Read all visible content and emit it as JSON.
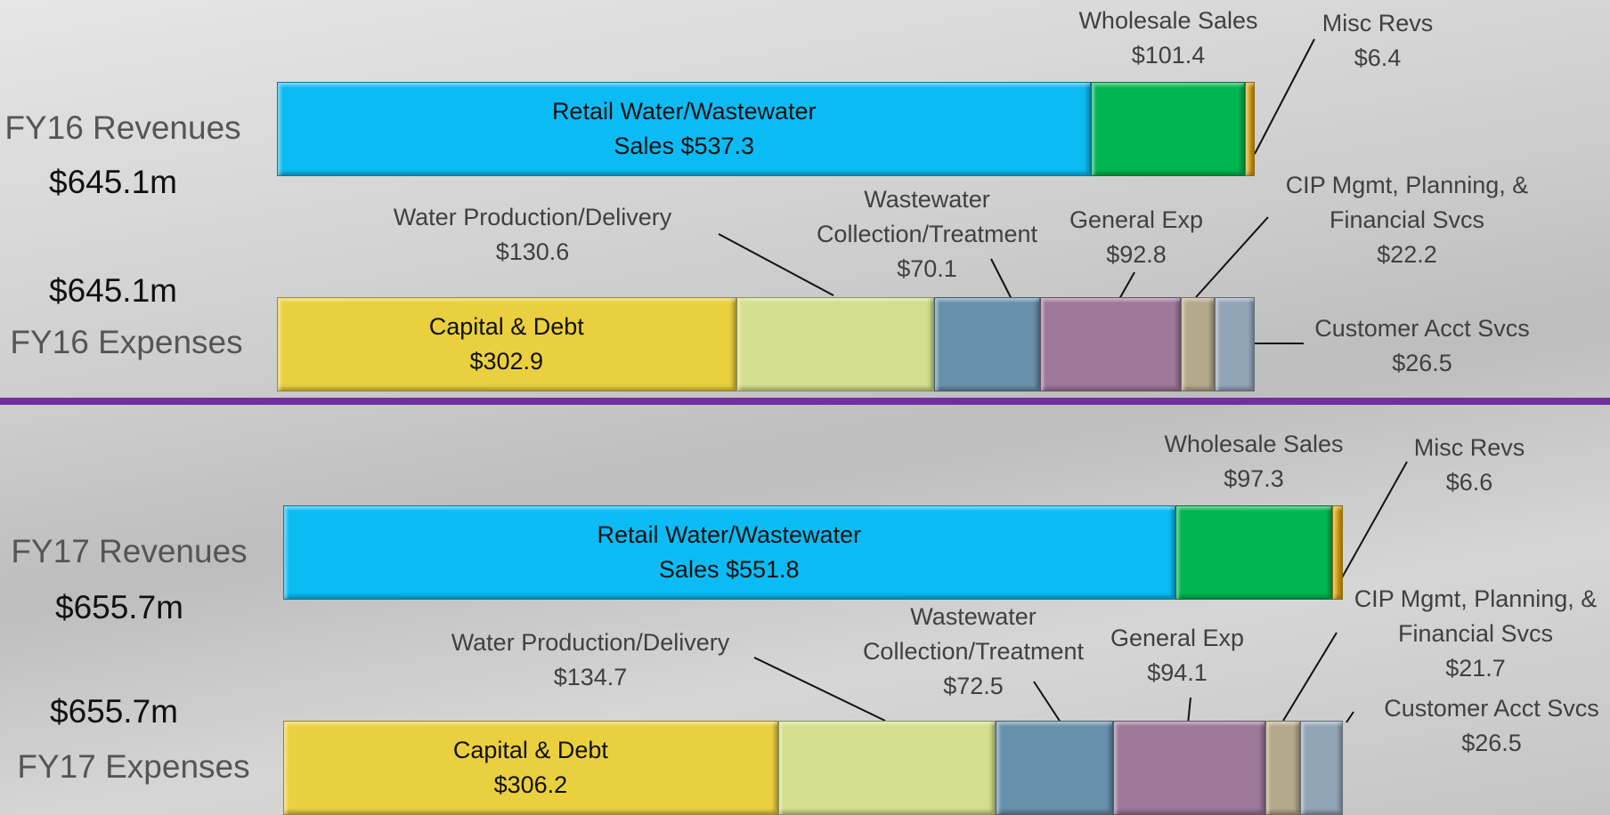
{
  "chart_data": [
    {
      "type": "stacked_bar",
      "category": "FY16 Revenues",
      "total": "$645.1m",
      "segments": [
        {
          "name": "Retail Water/Wastewater Sales",
          "value": 537.3,
          "value_label": "$537.3",
          "color": "#0bbcf4"
        },
        {
          "name": "Wholesale Sales",
          "value": 101.4,
          "value_label": "$101.4",
          "color": "#00b650"
        },
        {
          "name": "Misc Revs",
          "value": 6.4,
          "value_label": "$6.4",
          "color": "#d9a10e"
        }
      ]
    },
    {
      "type": "stacked_bar",
      "category": "FY16 Expenses",
      "total": "$645.1m",
      "segments": [
        {
          "name": "Capital & Debt",
          "value": 302.9,
          "value_label": "$302.9",
          "color": "#ead03f"
        },
        {
          "name": "Water Production/Delivery",
          "value": 130.6,
          "value_label": "$130.6",
          "color": "#d3df8c"
        },
        {
          "name": "Wastewater Collection/Treatment",
          "value": 70.1,
          "value_label": "$70.1",
          "color": "#6890ab"
        },
        {
          "name": "General Exp",
          "value": 92.8,
          "value_label": "$92.8",
          "color": "#9d7899"
        },
        {
          "name": "CIP Mgmt, Planning, & Financial Svcs",
          "value": 22.2,
          "value_label": "$22.2",
          "color": "#b5a98c"
        },
        {
          "name": "Customer Acct Svcs",
          "value": 26.5,
          "value_label": "$26.5",
          "color": "#92a5b6"
        }
      ]
    },
    {
      "type": "stacked_bar",
      "category": "FY17 Revenues",
      "total": "$655.7m",
      "segments": [
        {
          "name": "Retail Water/Wastewater Sales",
          "value": 551.8,
          "value_label": "$551.8",
          "color": "#0bbcf4"
        },
        {
          "name": "Wholesale Sales",
          "value": 97.3,
          "value_label": "$97.3",
          "color": "#00b650"
        },
        {
          "name": "Misc Revs",
          "value": 6.6,
          "value_label": "$6.6",
          "color": "#d9a10e"
        }
      ]
    },
    {
      "type": "stacked_bar",
      "category": "FY17 Expenses",
      "total": "$655.7m",
      "segments": [
        {
          "name": "Capital & Debt",
          "value": 306.2,
          "value_label": "$306.2",
          "color": "#ead03f"
        },
        {
          "name": "Water Production/Delivery",
          "value": 134.7,
          "value_label": "$134.7",
          "color": "#d3df8c"
        },
        {
          "name": "Wastewater Collection/Treatment",
          "value": 72.5,
          "value_label": "$72.5",
          "color": "#6890ab"
        },
        {
          "name": "General Exp",
          "value": 94.1,
          "value_label": "$94.1",
          "color": "#9d7899"
        },
        {
          "name": "CIP Mgmt, Planning, & Financial Svcs",
          "value": 21.7,
          "value_label": "$21.7",
          "color": "#b5a98c"
        },
        {
          "name": "Customer Acct Svcs",
          "value": 26.5,
          "value_label": "$26.5",
          "color": "#92a5b6"
        }
      ]
    }
  ]
}
